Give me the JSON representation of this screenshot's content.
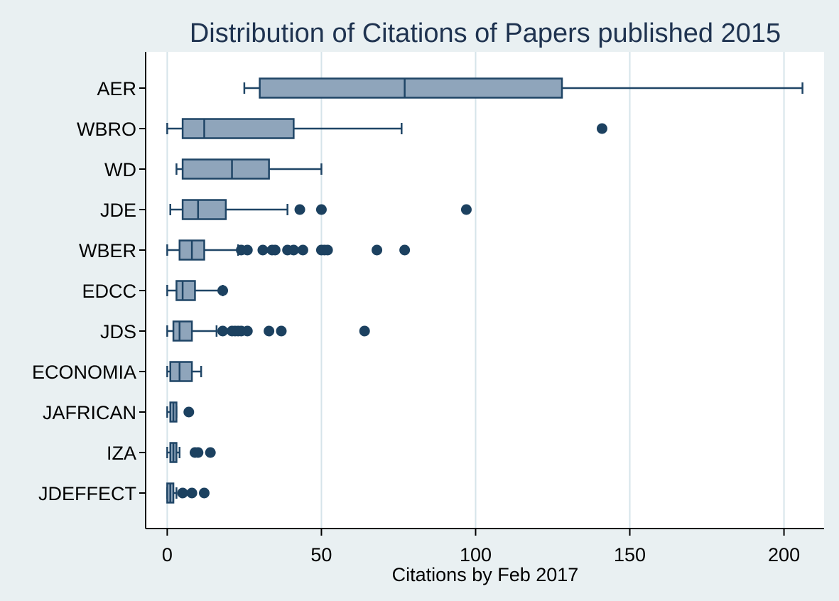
{
  "chart_data": {
    "type": "box",
    "title": "Distribution of Citations of Papers published 2015",
    "xlabel": "Citations by Feb 2017",
    "ylabel": "",
    "xlim": [
      -7,
      213
    ],
    "xticks": [
      0,
      50,
      100,
      150,
      200
    ],
    "grid": true,
    "orientation": "horizontal",
    "colors": {
      "box_fill": "#8fa5bb",
      "box_stroke": "#1f4566",
      "outlier": "#1c4160",
      "grid": "#d6e4ea",
      "plot_background": "#ffffff",
      "page_background": "#e9f0f2"
    },
    "categories": [
      "AER",
      "WBRO",
      "WD",
      "JDE",
      "WBER",
      "EDCC",
      "JDS",
      "ECONOMIA",
      "JAFRICAN",
      "IZA",
      "JDEFFECT"
    ],
    "boxes": [
      {
        "category": "AER",
        "whisker_low": 25,
        "q1": 30,
        "median": 77,
        "q3": 128,
        "whisker_high": 206,
        "outliers": []
      },
      {
        "category": "WBRO",
        "whisker_low": 0,
        "q1": 5,
        "median": 12,
        "q3": 41,
        "whisker_high": 76,
        "outliers": [
          141
        ]
      },
      {
        "category": "WD",
        "whisker_low": 3,
        "q1": 5,
        "median": 21,
        "q3": 33,
        "whisker_high": 50,
        "outliers": []
      },
      {
        "category": "JDE",
        "whisker_low": 1,
        "q1": 5,
        "median": 10,
        "q3": 19,
        "whisker_high": 39,
        "outliers": [
          43,
          50,
          97
        ]
      },
      {
        "category": "WBER",
        "whisker_low": 0,
        "q1": 4,
        "median": 8,
        "q3": 12,
        "whisker_high": 23,
        "outliers": [
          24,
          26,
          31,
          34,
          35,
          39,
          41,
          44,
          50,
          51,
          52,
          68,
          77
        ]
      },
      {
        "category": "EDCC",
        "whisker_low": 0,
        "q1": 3,
        "median": 5,
        "q3": 9,
        "whisker_high": 18,
        "outliers": [
          18
        ]
      },
      {
        "category": "JDS",
        "whisker_low": 0,
        "q1": 2,
        "median": 4,
        "q3": 8,
        "whisker_high": 16,
        "outliers": [
          18,
          21,
          22,
          23,
          24,
          26,
          33,
          37,
          64
        ]
      },
      {
        "category": "ECONOMIA",
        "whisker_low": 0,
        "q1": 1,
        "median": 4,
        "q3": 8,
        "whisker_high": 11,
        "outliers": []
      },
      {
        "category": "JAFRICAN",
        "whisker_low": 0,
        "q1": 1,
        "median": 2,
        "q3": 3,
        "whisker_high": 3,
        "outliers": [
          7
        ]
      },
      {
        "category": "IZA",
        "whisker_low": 0,
        "q1": 1,
        "median": 2,
        "q3": 3,
        "whisker_high": 4,
        "outliers": [
          9,
          10,
          14
        ]
      },
      {
        "category": "JDEFFECT",
        "whisker_low": 0,
        "q1": 0,
        "median": 1,
        "q3": 2,
        "whisker_high": 3,
        "outliers": [
          5,
          8,
          12
        ]
      }
    ]
  }
}
